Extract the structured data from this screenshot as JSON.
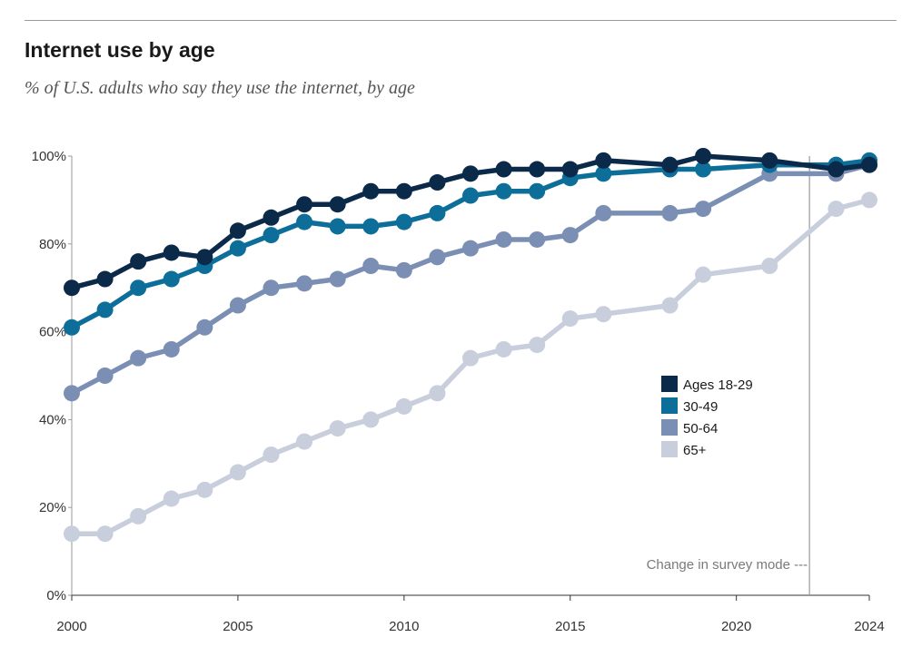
{
  "title": "Internet use by age",
  "subtitle": "% of U.S. adults who say they use the internet, by age",
  "chart_data": {
    "type": "line",
    "title": "Internet use by age",
    "subtitle": "% of U.S. adults who say they use the internet, by age",
    "xlabel": "",
    "ylabel": "",
    "xlim": [
      2000,
      2024
    ],
    "ylim": [
      0,
      100
    ],
    "x_ticks": [
      "2000",
      "2005",
      "2010",
      "2015",
      "2020",
      "2024"
    ],
    "y_ticks": [
      "0%",
      "20%",
      "40%",
      "60%",
      "80%",
      "100%"
    ],
    "legend_position": "right-middle",
    "annotation": {
      "text": "Change in survey mode ---",
      "year": 2022.2
    },
    "series": [
      {
        "name": "Ages 18-29",
        "color": "#0b2949",
        "points": [
          [
            2000,
            70
          ],
          [
            2001,
            72
          ],
          [
            2002,
            76
          ],
          [
            2003,
            78
          ],
          [
            2004,
            77
          ],
          [
            2005,
            83
          ],
          [
            2006,
            86
          ],
          [
            2007,
            89
          ],
          [
            2008,
            89
          ],
          [
            2009,
            92
          ],
          [
            2010,
            92
          ],
          [
            2011,
            94
          ],
          [
            2012,
            96
          ],
          [
            2013,
            97
          ],
          [
            2014,
            97
          ],
          [
            2015,
            97
          ],
          [
            2016,
            99
          ],
          [
            2018,
            98
          ],
          [
            2019,
            100
          ],
          [
            2021,
            99
          ],
          [
            2023,
            97
          ],
          [
            2024,
            98
          ]
        ]
      },
      {
        "name": "30-49",
        "color": "#0c6e99",
        "points": [
          [
            2000,
            61
          ],
          [
            2001,
            65
          ],
          [
            2002,
            70
          ],
          [
            2003,
            72
          ],
          [
            2004,
            75
          ],
          [
            2005,
            79
          ],
          [
            2006,
            82
          ],
          [
            2007,
            85
          ],
          [
            2008,
            84
          ],
          [
            2009,
            84
          ],
          [
            2010,
            85
          ],
          [
            2011,
            87
          ],
          [
            2012,
            91
          ],
          [
            2013,
            92
          ],
          [
            2014,
            92
          ],
          [
            2015,
            95
          ],
          [
            2016,
            96
          ],
          [
            2018,
            97
          ],
          [
            2019,
            97
          ],
          [
            2021,
            98
          ],
          [
            2023,
            98
          ],
          [
            2024,
            99
          ]
        ]
      },
      {
        "name": "50-64",
        "color": "#7b8fb4",
        "points": [
          [
            2000,
            46
          ],
          [
            2001,
            50
          ],
          [
            2002,
            54
          ],
          [
            2003,
            56
          ],
          [
            2004,
            61
          ],
          [
            2005,
            66
          ],
          [
            2006,
            70
          ],
          [
            2007,
            71
          ],
          [
            2008,
            72
          ],
          [
            2009,
            75
          ],
          [
            2010,
            74
          ],
          [
            2011,
            77
          ],
          [
            2012,
            79
          ],
          [
            2013,
            81
          ],
          [
            2014,
            81
          ],
          [
            2015,
            82
          ],
          [
            2016,
            87
          ],
          [
            2018,
            87
          ],
          [
            2019,
            88
          ],
          [
            2021,
            96
          ],
          [
            2023,
            96
          ],
          [
            2024,
            98
          ]
        ]
      },
      {
        "name": "65+",
        "color": "#c8cedc",
        "points": [
          [
            2000,
            14
          ],
          [
            2001,
            14
          ],
          [
            2002,
            18
          ],
          [
            2003,
            22
          ],
          [
            2004,
            24
          ],
          [
            2005,
            28
          ],
          [
            2006,
            32
          ],
          [
            2007,
            35
          ],
          [
            2008,
            38
          ],
          [
            2009,
            40
          ],
          [
            2010,
            43
          ],
          [
            2011,
            46
          ],
          [
            2012,
            54
          ],
          [
            2013,
            56
          ],
          [
            2014,
            57
          ],
          [
            2015,
            63
          ],
          [
            2016,
            64
          ],
          [
            2018,
            66
          ],
          [
            2019,
            73
          ],
          [
            2021,
            75
          ],
          [
            2023,
            88
          ],
          [
            2024,
            90
          ]
        ]
      }
    ]
  }
}
